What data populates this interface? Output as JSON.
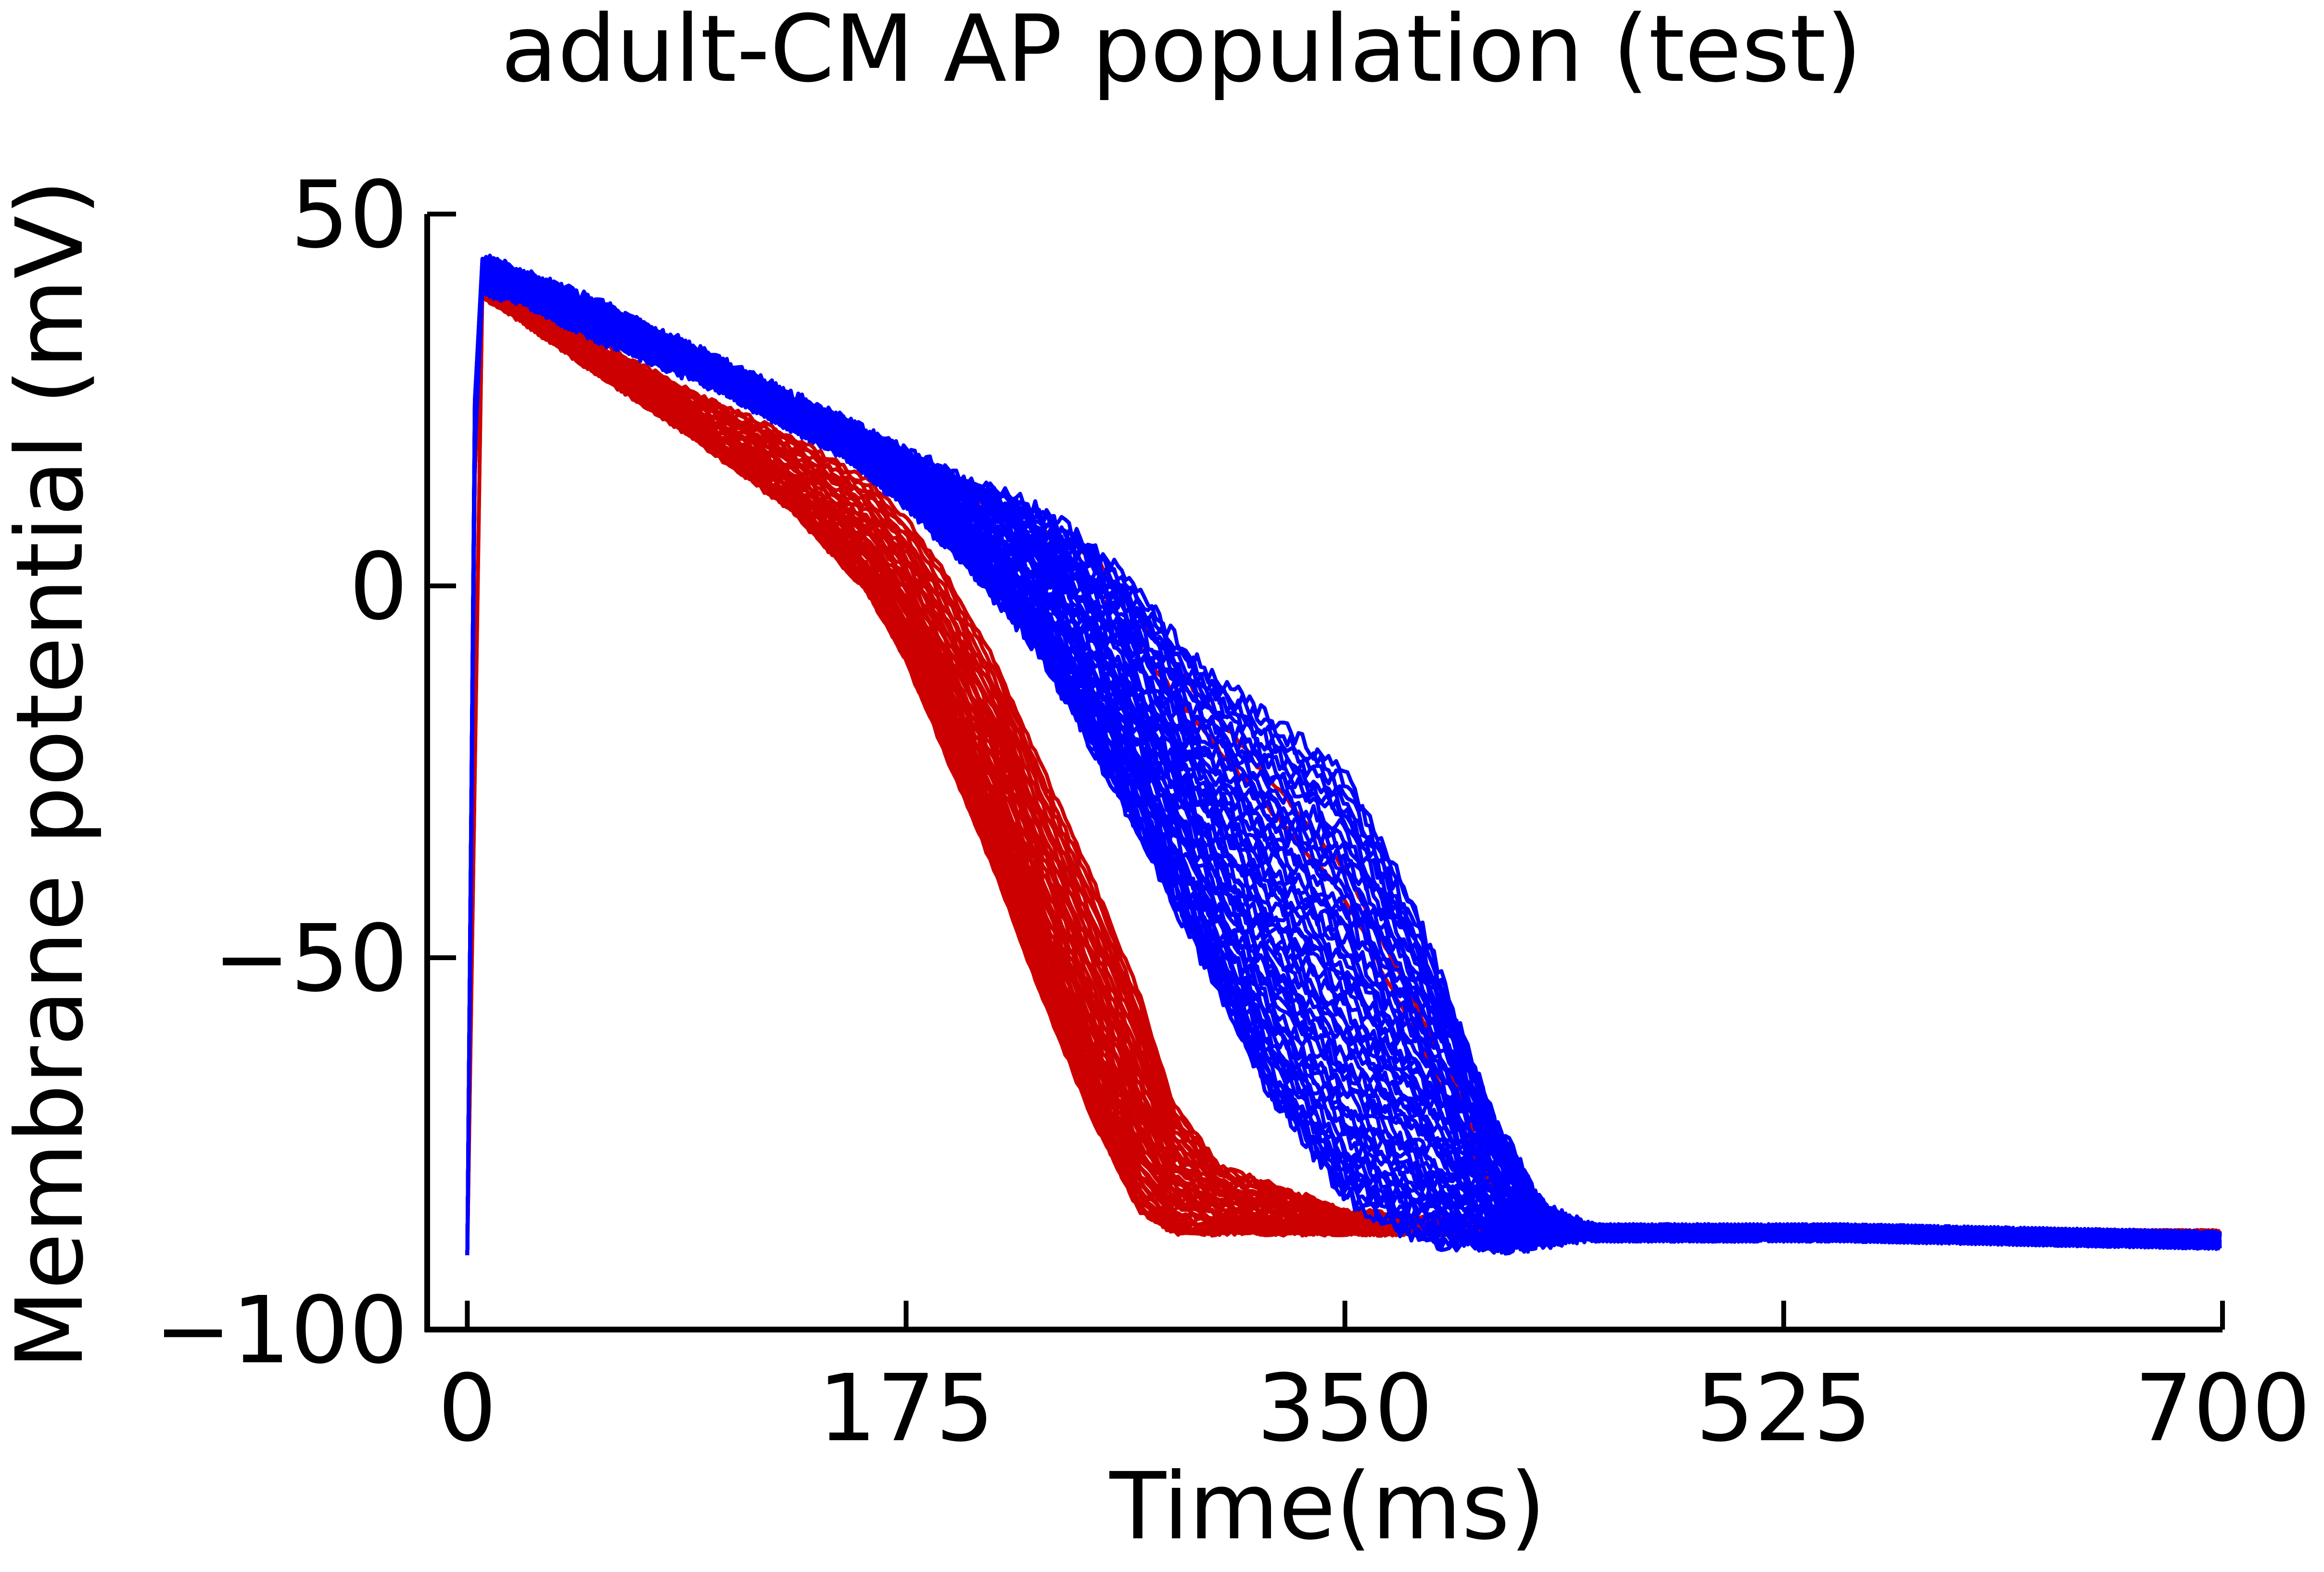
{
  "chart_data": {
    "type": "line",
    "title": "adult-CM AP population (test)",
    "xlabel": "Time(ms)",
    "ylabel": "Membrane potential (mV)",
    "xlim": [
      -16,
      700
    ],
    "ylim": [
      -100,
      50
    ],
    "xticks": [
      0,
      175,
      350,
      525,
      700
    ],
    "xtick_labels": [
      "0",
      "175",
      "350",
      "525",
      "700"
    ],
    "yticks": [
      -100,
      -50,
      0,
      50
    ],
    "ytick_labels": [
      "−100",
      "−50",
      "0",
      "50"
    ],
    "grid": false,
    "legend": "none",
    "spines": [
      "left",
      "bottom"
    ],
    "colors": {
      "red_population": "#cc0000",
      "blue_population": "#0000ff",
      "axis": "#000000"
    },
    "resting_potential": -87,
    "peak_potential_range": [
      38,
      44
    ],
    "series": [
      {
        "color": "#cc0000",
        "count": 40,
        "x": [
          0,
          3,
          6,
          20,
          50,
          90,
          130,
          160,
          175,
          190,
          210,
          230,
          250,
          268,
          282,
          300,
          350,
          450,
          550,
          700
        ],
        "lower_envelope": [
          -90,
          15,
          39,
          36,
          29,
          20,
          10,
          -1,
          -10,
          -22,
          -38,
          -56,
          -72,
          -84,
          -87,
          -87,
          -87,
          -87,
          -87,
          -87
        ],
        "upper_envelope": [
          -90,
          20,
          41,
          39,
          33,
          26,
          20,
          14,
          9,
          2,
          -10,
          -25,
          -40,
          -55,
          -70,
          -78,
          -84,
          -87,
          -87,
          -87
        ],
        "late_outlier_x": [
          0,
          6,
          150,
          250,
          290,
          320,
          350,
          370,
          395,
          410,
          430,
          700
        ],
        "late_outlier_y": [
          -90,
          40,
          20,
          0,
          -18,
          -30,
          -42,
          -55,
          -72,
          -82,
          -87,
          -87
        ]
      },
      {
        "color": "#0000ff",
        "count": 60,
        "x": [
          0,
          3,
          6,
          20,
          50,
          100,
          150,
          175,
          200,
          230,
          260,
          290,
          320,
          350,
          380,
          410,
          430,
          450,
          550,
          700
        ],
        "lower_envelope": [
          -90,
          18,
          40,
          39,
          34,
          27,
          18,
          11,
          3,
          -10,
          -28,
          -48,
          -68,
          -82,
          -88,
          -89,
          -88,
          -87,
          -87,
          -88
        ],
        "upper_envelope": [
          -90,
          25,
          44,
          42,
          38,
          30,
          22,
          18,
          14,
          10,
          2,
          -10,
          -18,
          -25,
          -45,
          -72,
          -84,
          -87,
          -87,
          -88
        ]
      }
    ]
  }
}
